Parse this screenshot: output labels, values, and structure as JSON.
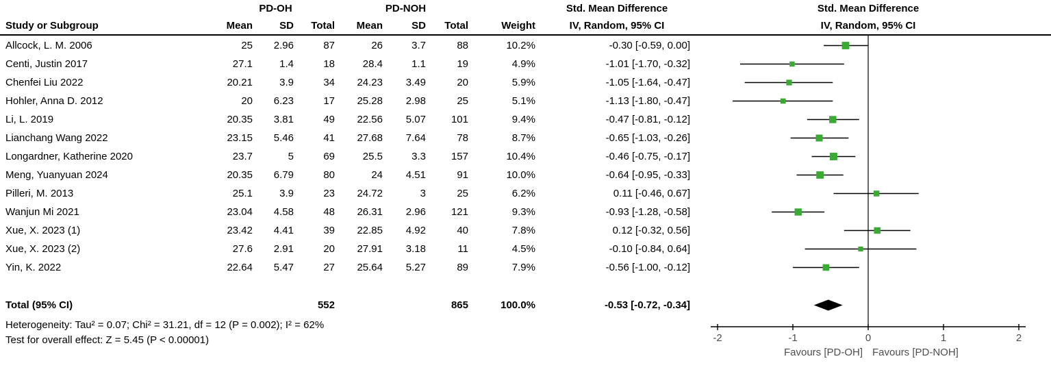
{
  "header": {
    "study_col": "Study or Subgroup",
    "group1": "PD-OH",
    "group2": "PD-NOH",
    "mean": "Mean",
    "sd": "SD",
    "total": "Total",
    "weight": "Weight",
    "effect_title": "Std. Mean Difference",
    "effect_method": "IV, Random, 95% CI",
    "plot_title": "Std. Mean Difference",
    "plot_method": "IV, Random, 95% CI"
  },
  "footer": {
    "heterogeneity": "Heterogeneity: Tau² = 0.07; Chi² = 31.21, df = 12 (P = 0.002); I² = 62%",
    "overall_effect": "Test for overall effect: Z = 5.45 (P < 0.00001)"
  },
  "chart_data": {
    "type": "forest",
    "title": "Std. Mean Difference, IV, Random, 95% CI",
    "xlim": [
      -2,
      2
    ],
    "axis_ticks": [
      -2,
      -1,
      0,
      1,
      2
    ],
    "favours_left": "Favours [PD-OH]",
    "favours_right": "Favours [PD-NOH]",
    "marker_color": "#3aaa35",
    "axis_text_color": "#4d4d4d",
    "studies": [
      {
        "name": "Allcock, L. M. 2006",
        "mean1": "25",
        "sd1": "2.96",
        "total1": "87",
        "mean2": "26",
        "sd2": "3.7",
        "total2": "88",
        "weight": "10.2%",
        "weight_pct": 10.2,
        "ci_text": "-0.30 [-0.59, 0.00]",
        "est": -0.3,
        "lo": -0.59,
        "hi": 0.0
      },
      {
        "name": "Centi, Justin 2017",
        "mean1": "27.1",
        "sd1": "1.4",
        "total1": "18",
        "mean2": "28.4",
        "sd2": "1.1",
        "total2": "19",
        "weight": "4.9%",
        "weight_pct": 4.9,
        "ci_text": "-1.01 [-1.70, -0.32]",
        "est": -1.01,
        "lo": -1.7,
        "hi": -0.32
      },
      {
        "name": "Chenfei Liu 2022",
        "mean1": "20.21",
        "sd1": "3.9",
        "total1": "34",
        "mean2": "24.23",
        "sd2": "3.49",
        "total2": "20",
        "weight": "5.9%",
        "weight_pct": 5.9,
        "ci_text": "-1.05 [-1.64, -0.47]",
        "est": -1.05,
        "lo": -1.64,
        "hi": -0.47
      },
      {
        "name": "Hohler, Anna D. 2012",
        "mean1": "20",
        "sd1": "6.23",
        "total1": "17",
        "mean2": "25.28",
        "sd2": "2.98",
        "total2": "25",
        "weight": "5.1%",
        "weight_pct": 5.1,
        "ci_text": "-1.13 [-1.80, -0.47]",
        "est": -1.13,
        "lo": -1.8,
        "hi": -0.47
      },
      {
        "name": "Li, L. 2019",
        "mean1": "20.35",
        "sd1": "3.81",
        "total1": "49",
        "mean2": "22.56",
        "sd2": "5.07",
        "total2": "101",
        "weight": "9.4%",
        "weight_pct": 9.4,
        "ci_text": "-0.47 [-0.81, -0.12]",
        "est": -0.47,
        "lo": -0.81,
        "hi": -0.12
      },
      {
        "name": "Lianchang Wang 2022",
        "mean1": "23.15",
        "sd1": "5.46",
        "total1": "41",
        "mean2": "27.68",
        "sd2": "7.64",
        "total2": "78",
        "weight": "8.7%",
        "weight_pct": 8.7,
        "ci_text": "-0.65 [-1.03, -0.26]",
        "est": -0.65,
        "lo": -1.03,
        "hi": -0.26
      },
      {
        "name": "Longardner, Katherine 2020",
        "mean1": "23.7",
        "sd1": "5",
        "total1": "69",
        "mean2": "25.5",
        "sd2": "3.3",
        "total2": "157",
        "weight": "10.4%",
        "weight_pct": 10.4,
        "ci_text": "-0.46 [-0.75, -0.17]",
        "est": -0.46,
        "lo": -0.75,
        "hi": -0.17
      },
      {
        "name": "Meng, Yuanyuan 2024",
        "mean1": "20.35",
        "sd1": "6.79",
        "total1": "80",
        "mean2": "24",
        "sd2": "4.51",
        "total2": "91",
        "weight": "10.0%",
        "weight_pct": 10.0,
        "ci_text": "-0.64 [-0.95, -0.33]",
        "est": -0.64,
        "lo": -0.95,
        "hi": -0.33
      },
      {
        "name": "Pilleri, M. 2013",
        "mean1": "25.1",
        "sd1": "3.9",
        "total1": "23",
        "mean2": "24.72",
        "sd2": "3",
        "total2": "25",
        "weight": "6.2%",
        "weight_pct": 6.2,
        "ci_text": "0.11 [-0.46, 0.67]",
        "est": 0.11,
        "lo": -0.46,
        "hi": 0.67
      },
      {
        "name": "Wanjun Mi 2021",
        "mean1": "23.04",
        "sd1": "4.58",
        "total1": "48",
        "mean2": "26.31",
        "sd2": "2.96",
        "total2": "121",
        "weight": "9.3%",
        "weight_pct": 9.3,
        "ci_text": "-0.93 [-1.28, -0.58]",
        "est": -0.93,
        "lo": -1.28,
        "hi": -0.58
      },
      {
        "name": "Xue, X. 2023 (1)",
        "mean1": "23.42",
        "sd1": "4.41",
        "total1": "39",
        "mean2": "22.85",
        "sd2": "4.92",
        "total2": "40",
        "weight": "7.8%",
        "weight_pct": 7.8,
        "ci_text": "0.12 [-0.32, 0.56]",
        "est": 0.12,
        "lo": -0.32,
        "hi": 0.56
      },
      {
        "name": "Xue, X. 2023 (2)",
        "mean1": "27.6",
        "sd1": "2.91",
        "total1": "20",
        "mean2": "27.91",
        "sd2": "3.18",
        "total2": "11",
        "weight": "4.5%",
        "weight_pct": 4.5,
        "ci_text": "-0.10 [-0.84, 0.64]",
        "est": -0.1,
        "lo": -0.84,
        "hi": 0.64
      },
      {
        "name": "Yin, K. 2022",
        "mean1": "22.64",
        "sd1": "5.47",
        "total1": "27",
        "mean2": "25.64",
        "sd2": "5.27",
        "total2": "89",
        "weight": "7.9%",
        "weight_pct": 7.9,
        "ci_text": "-0.56 [-1.00, -0.12]",
        "est": -0.56,
        "lo": -1.0,
        "hi": -0.12
      }
    ],
    "total": {
      "label": "Total (95% CI)",
      "total1": "552",
      "total2": "865",
      "weight": "100.0%",
      "ci_text": "-0.53 [-0.72, -0.34]",
      "est": -0.53,
      "lo": -0.72,
      "hi": -0.34
    }
  }
}
